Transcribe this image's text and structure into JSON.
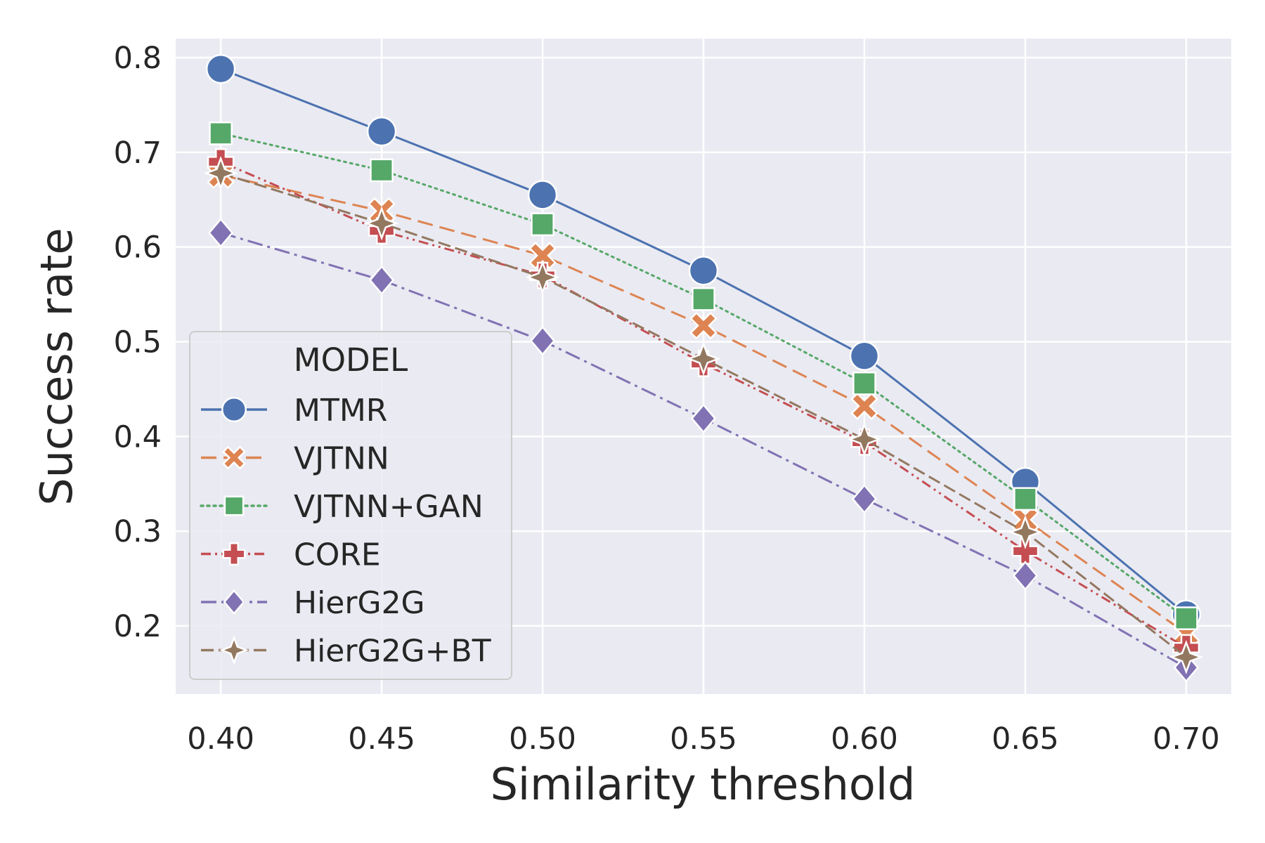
{
  "chart_data": {
    "type": "line",
    "title": "",
    "xlabel": "Similarity threshold",
    "ylabel": "Success rate",
    "x": [
      0.4,
      0.45,
      0.5,
      0.55,
      0.6,
      0.65,
      0.7
    ],
    "x_tick_labels": [
      "0.40",
      "0.45",
      "0.50",
      "0.55",
      "0.60",
      "0.65",
      "0.70"
    ],
    "y_ticks": [
      0.2,
      0.3,
      0.4,
      0.5,
      0.6,
      0.7,
      0.8
    ],
    "y_tick_labels": [
      "0.2",
      "0.3",
      "0.4",
      "0.5",
      "0.6",
      "0.7",
      "0.8"
    ],
    "xlim": [
      0.386,
      0.714
    ],
    "ylim": [
      0.128,
      0.82
    ],
    "grid": true,
    "legend": {
      "title": "MODEL",
      "placement": "lower-left"
    },
    "series": [
      {
        "name": "MTMR",
        "color": "#4c72b0",
        "marker": "circle",
        "dash": "solid",
        "values": [
          0.788,
          0.722,
          0.655,
          0.575,
          0.485,
          0.352,
          0.212
        ]
      },
      {
        "name": "VJTNN",
        "color": "#dd8452",
        "marker": "x",
        "dash": "dashed",
        "values": [
          0.676,
          0.638,
          0.591,
          0.517,
          0.432,
          0.312,
          0.192
        ]
      },
      {
        "name": "VJTNN+GAN",
        "color": "#55a868",
        "marker": "square",
        "dash": "dotted",
        "values": [
          0.72,
          0.681,
          0.624,
          0.545,
          0.456,
          0.334,
          0.208
        ]
      },
      {
        "name": "CORE",
        "color": "#c44e52",
        "marker": "plus",
        "dash": "dashdotdot",
        "values": [
          0.69,
          0.617,
          0.57,
          0.477,
          0.394,
          0.279,
          0.177
        ]
      },
      {
        "name": "HierG2G",
        "color": "#8172b3",
        "marker": "diamond",
        "dash": "dashdot",
        "values": [
          0.615,
          0.565,
          0.501,
          0.419,
          0.334,
          0.253,
          0.156
        ]
      },
      {
        "name": "HierG2G+BT",
        "color": "#937860",
        "marker": "star",
        "dash": "loosedash",
        "values": [
          0.678,
          0.625,
          0.568,
          0.482,
          0.397,
          0.299,
          0.167
        ]
      }
    ]
  }
}
